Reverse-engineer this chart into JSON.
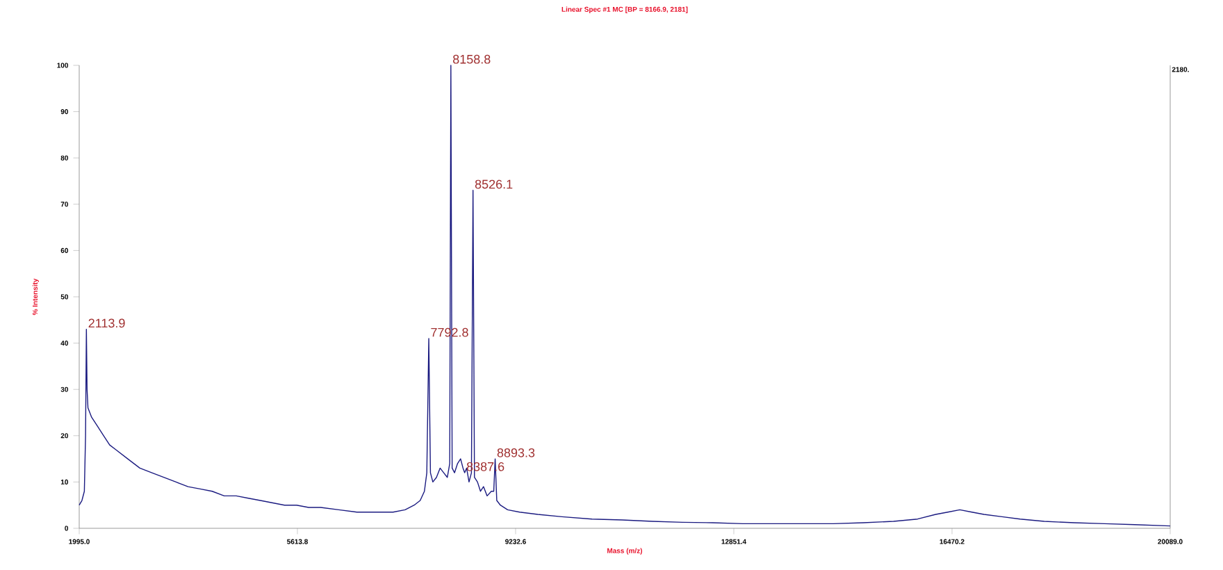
{
  "chart_data": {
    "type": "line",
    "title": "Linear Spec #1 MC [BP = 8166.9, 2181]",
    "xlabel": "Mass (m/z)",
    "ylabel": "% Intensity",
    "xlim": [
      1995.0,
      20089.0
    ],
    "ylim": [
      0,
      100
    ],
    "xticks": [
      {
        "value": 1995.0,
        "label": "1995.0"
      },
      {
        "value": 5613.8,
        "label": "5613.8"
      },
      {
        "value": 9232.6,
        "label": "9232.6"
      },
      {
        "value": 12851.4,
        "label": "12851.4"
      },
      {
        "value": 16470.2,
        "label": "16470.2"
      },
      {
        "value": 20089.0,
        "label": "20089.0"
      }
    ],
    "yticks": [
      0,
      10,
      20,
      30,
      40,
      50,
      60,
      70,
      80,
      90,
      100
    ],
    "marker": "none",
    "line_style": "solid",
    "series": [
      {
        "color": "#1a1a80",
        "x": [
          1995,
          2040,
          2080,
          2100,
          2113.9,
          2125,
          2140,
          2200,
          2300,
          2400,
          2500,
          2600,
          2800,
          3000,
          3200,
          3400,
          3600,
          3800,
          4000,
          4200,
          4400,
          4600,
          4800,
          5000,
          5200,
          5400,
          5600,
          5800,
          6000,
          6300,
          6600,
          6900,
          7200,
          7400,
          7550,
          7650,
          7720,
          7760,
          7792.8,
          7820,
          7860,
          7920,
          7980,
          8040,
          8100,
          8140,
          8158.8,
          8180,
          8220,
          8270,
          8320,
          8360,
          8387.6,
          8420,
          8460,
          8500,
          8526.1,
          8550,
          8600,
          8650,
          8700,
          8760,
          8830,
          8870,
          8893.3,
          8920,
          8980,
          9100,
          9300,
          9600,
          10000,
          10500,
          11000,
          11500,
          12000,
          12500,
          13000,
          13500,
          14000,
          14500,
          15000,
          15500,
          15900,
          16200,
          16400,
          16600,
          16800,
          17000,
          17300,
          17600,
          18000,
          18500,
          19000,
          19500,
          20089
        ],
        "values": [
          5,
          6,
          8,
          20,
          43,
          30,
          26,
          24,
          22,
          20,
          18,
          17,
          15,
          13,
          12,
          11,
          10,
          9,
          8.5,
          8,
          7,
          7,
          6.5,
          6,
          5.5,
          5,
          5,
          4.5,
          4.5,
          4,
          3.5,
          3.5,
          3.5,
          4,
          5,
          6,
          8,
          12,
          41,
          12,
          10,
          11,
          13,
          12,
          11,
          14,
          100,
          13,
          12,
          14,
          15,
          13,
          12,
          13,
          10,
          12,
          73,
          11,
          10,
          8,
          9,
          7,
          8,
          8,
          15,
          6,
          5,
          4,
          3.5,
          3,
          2.5,
          2,
          1.8,
          1.5,
          1.3,
          1.2,
          1,
          1,
          1,
          1,
          1.2,
          1.5,
          2,
          3,
          3.5,
          4,
          3.5,
          3,
          2.5,
          2,
          1.5,
          1.2,
          1,
          0.8,
          0.5
        ]
      }
    ],
    "annotations": [
      {
        "text": "2113.9",
        "x": 2113.9,
        "y": 43
      },
      {
        "text": "7792.8",
        "x": 7792.8,
        "y": 41
      },
      {
        "text": "8158.8",
        "x": 8158.8,
        "y": 100
      },
      {
        "text": "8526.1",
        "x": 8526.1,
        "y": 73
      },
      {
        "text": "8893.3",
        "x": 8893.3,
        "y": 15
      },
      {
        "text": "8387.6",
        "x": 8387.6,
        "y": 12
      },
      "2180."
    ]
  }
}
